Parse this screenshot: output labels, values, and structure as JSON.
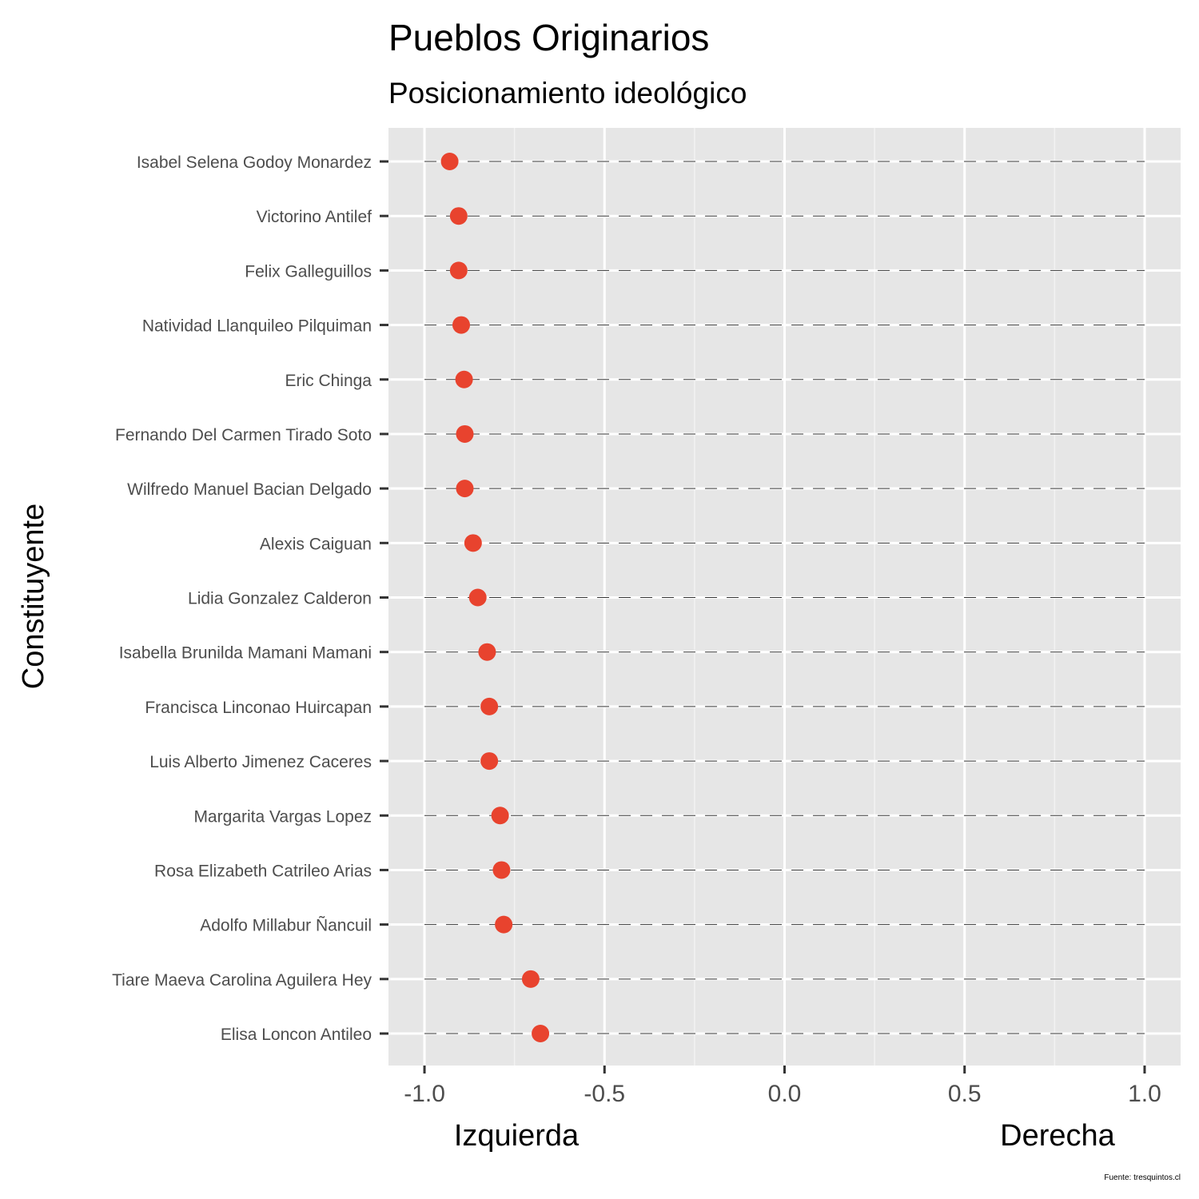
{
  "chart_data": {
    "type": "scatter",
    "title": "Pueblos Originarios",
    "subtitle": "Posicionamiento ideológico",
    "ylabel": "Constituyente",
    "x_end_labels": {
      "left": "Izquierda",
      "right": "Derecha"
    },
    "caption": "Fuente: tresquintos.cl",
    "xlim": [
      -1.1,
      1.1
    ],
    "xticks": [
      -1.0,
      -0.5,
      0.0,
      0.5,
      1.0
    ],
    "xtick_labels": [
      "-1.0",
      "-0.5",
      "0.0",
      "0.5",
      "1.0"
    ],
    "grid": true,
    "point_color": "#e8432e",
    "panel_color": "#e6e6e6",
    "categories": [
      "Isabel Selena Godoy Monardez",
      "Victorino Antilef",
      "Felix Galleguillos",
      "Natividad Llanquileo Pilquiman",
      "Eric Chinga",
      "Fernando Del Carmen Tirado Soto",
      "Wilfredo Manuel Bacian Delgado",
      "Alexis Caiguan",
      "Lidia Gonzalez Calderon",
      "Isabella Brunilda Mamani Mamani",
      "Francisca Linconao Huircapan",
      "Luis Alberto Jimenez Caceres",
      "Margarita Vargas Lopez",
      "Rosa Elizabeth Catrileo Arias",
      "Adolfo Millabur Ñancuil",
      "Tiare Maeva Carolina Aguilera Hey",
      "Elisa Loncon Antileo"
    ],
    "values": [
      -0.93,
      -0.905,
      -0.905,
      -0.898,
      -0.89,
      -0.888,
      -0.888,
      -0.865,
      -0.852,
      -0.826,
      -0.82,
      -0.82,
      -0.79,
      -0.786,
      -0.78,
      -0.705,
      -0.678
    ]
  }
}
